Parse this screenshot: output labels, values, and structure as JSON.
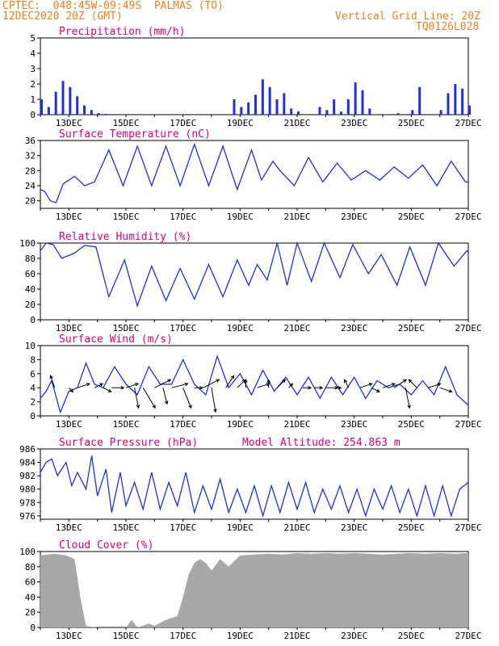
{
  "header": {
    "line1": "CPTEC:  048:45W-09:49S  PALMAS (TO)",
    "line2": "12DEC2020 20Z (GMT)",
    "grid_note": "Vertical Grid Line: 20Z",
    "code": "TQ0126L028"
  },
  "colors": {
    "header": "#f08020",
    "title": "#e0007a",
    "line": "#2030e0",
    "bar": "#2030e0",
    "cloud": "#a8a8a8",
    "arrow": "#000000"
  },
  "chart_data": [
    {
      "type": "bar",
      "title": "Precipitation (mm/h)",
      "x_ticks": [
        "13DEC",
        "15DEC",
        "17DEC",
        "19DEC",
        "21DEC",
        "23DEC",
        "25DEC",
        "27DEC"
      ],
      "yticks": [
        0,
        1,
        2,
        3,
        4,
        5
      ],
      "ylim": [
        0,
        5
      ],
      "x": [
        0.0,
        0.25,
        0.5,
        0.75,
        1.0,
        1.25,
        1.5,
        1.75,
        2.0,
        2.25,
        6.75,
        7.0,
        7.25,
        7.5,
        7.75,
        8.0,
        8.25,
        8.5,
        8.75,
        9.0,
        9.75,
        10.0,
        10.25,
        10.5,
        10.75,
        11.0,
        11.25,
        11.5,
        12.5,
        13.0,
        13.25,
        14.0,
        14.25,
        14.5,
        14.75,
        15.0
      ],
      "values": [
        1.0,
        0.5,
        1.5,
        2.2,
        1.8,
        1.2,
        0.6,
        0.3,
        0.1,
        0.05,
        1.0,
        0.5,
        0.8,
        1.3,
        2.3,
        1.8,
        1.0,
        1.4,
        0.4,
        0.2,
        0.5,
        0.3,
        1.0,
        0.2,
        1.0,
        2.1,
        1.6,
        0.4,
        0.1,
        0.3,
        1.8,
        0.3,
        1.4,
        2.0,
        1.7,
        0.6
      ]
    },
    {
      "type": "line",
      "title": "Surface Temperature (nC)",
      "x_ticks": [
        "13DEC",
        "15DEC",
        "17DEC",
        "19DEC",
        "21DEC",
        "23DEC",
        "25DEC",
        "27DEC"
      ],
      "yticks": [
        20,
        24,
        28,
        32,
        36
      ],
      "ylim": [
        18,
        36
      ],
      "x": [
        0.0,
        0.15,
        0.35,
        0.55,
        0.8,
        1.2,
        1.55,
        1.9,
        2.4,
        2.9,
        3.4,
        3.9,
        4.4,
        4.9,
        5.4,
        5.9,
        6.4,
        6.9,
        7.4,
        7.75,
        8.15,
        8.4,
        8.9,
        9.4,
        9.9,
        10.4,
        10.9,
        11.4,
        11.9,
        12.4,
        12.9,
        13.4,
        13.9,
        14.4,
        14.9,
        15.0
      ],
      "values": [
        23.0,
        22.5,
        20.0,
        19.5,
        24.5,
        26.5,
        24.0,
        25.0,
        33.5,
        24.0,
        34.5,
        24.0,
        34.5,
        24.0,
        35.0,
        24.0,
        34.5,
        23.0,
        33.5,
        25.5,
        30.5,
        28.0,
        24.0,
        31.5,
        25.0,
        30.0,
        25.5,
        28.0,
        25.5,
        29.0,
        26.0,
        29.5,
        24.0,
        30.5,
        25.0,
        25.0
      ]
    },
    {
      "type": "line",
      "title": "Relative Humidity (%)",
      "x_ticks": [
        "13DEC",
        "15DEC",
        "17DEC",
        "19DEC",
        "21DEC",
        "23DEC",
        "25DEC",
        "27DEC"
      ],
      "yticks": [
        0,
        20,
        40,
        60,
        80,
        100
      ],
      "ylim": [
        0,
        100
      ],
      "x": [
        0.0,
        0.2,
        0.45,
        0.75,
        1.2,
        1.55,
        1.95,
        2.4,
        2.95,
        3.4,
        3.9,
        4.4,
        4.9,
        5.4,
        5.9,
        6.4,
        6.9,
        7.3,
        7.6,
        7.95,
        8.3,
        8.65,
        9.0,
        9.5,
        9.95,
        10.5,
        10.95,
        11.5,
        11.95,
        12.5,
        12.95,
        13.5,
        13.95,
        14.5,
        14.95,
        15.0
      ],
      "values": [
        90,
        100,
        98,
        80,
        87,
        97,
        95,
        30,
        78,
        18,
        70,
        25,
        67,
        27,
        72,
        30,
        78,
        45,
        72,
        52,
        100,
        45,
        100,
        50,
        100,
        55,
        98,
        60,
        85,
        45,
        95,
        45,
        100,
        70,
        90,
        88
      ]
    },
    {
      "type": "line",
      "title": "Surface Wind (m/s)",
      "x_ticks": [
        "13DEC",
        "15DEC",
        "17DEC",
        "19DEC",
        "21DEC",
        "23DEC",
        "25DEC",
        "27DEC"
      ],
      "yticks": [
        0,
        2,
        4,
        6,
        8,
        10
      ],
      "ylim": [
        0,
        10
      ],
      "x": [
        0.0,
        0.2,
        0.4,
        0.7,
        1.0,
        1.3,
        1.6,
        1.9,
        2.2,
        2.6,
        3.0,
        3.4,
        3.8,
        4.2,
        4.6,
        5.0,
        5.4,
        5.8,
        6.2,
        6.6,
        7.0,
        7.4,
        7.8,
        8.2,
        8.6,
        9.0,
        9.4,
        9.8,
        10.2,
        10.6,
        11.0,
        11.4,
        11.8,
        12.2,
        12.6,
        13.0,
        13.4,
        13.8,
        14.2,
        14.6,
        15.0
      ],
      "values": [
        2.5,
        3.5,
        5.0,
        0.5,
        3.5,
        4.0,
        7.5,
        4.5,
        4.0,
        7.0,
        4.5,
        3.0,
        7.0,
        4.5,
        4.5,
        8.0,
        4.5,
        3.0,
        8.5,
        4.0,
        6.0,
        3.0,
        6.5,
        3.5,
        5.5,
        3.0,
        5.5,
        2.5,
        5.5,
        3.0,
        5.5,
        2.5,
        5.0,
        4.0,
        4.5,
        3.0,
        5.0,
        3.0,
        7.0,
        3.0,
        1.5
      ],
      "vectors": [
        {
          "x": 0.5,
          "u": -1,
          "v": 3
        },
        {
          "x": 1.0,
          "u": 1,
          "v": -1
        },
        {
          "x": 1.3,
          "u": 3,
          "v": 1
        },
        {
          "x": 1.9,
          "u": 2,
          "v": 1
        },
        {
          "x": 2.2,
          "u": 2,
          "v": -1
        },
        {
          "x": 2.5,
          "u": 3,
          "v": 0
        },
        {
          "x": 3.0,
          "u": 3,
          "v": 1
        },
        {
          "x": 3.3,
          "u": 1,
          "v": -5
        },
        {
          "x": 3.6,
          "u": 3,
          "v": -5
        },
        {
          "x": 4.0,
          "u": 4,
          "v": 2
        },
        {
          "x": 4.3,
          "u": 1,
          "v": -4
        },
        {
          "x": 4.6,
          "u": 4,
          "v": 1
        },
        {
          "x": 5.0,
          "u": 2,
          "v": -5
        },
        {
          "x": 5.4,
          "u": 2,
          "v": 0
        },
        {
          "x": 5.7,
          "u": 4,
          "v": 2
        },
        {
          "x": 6.0,
          "u": 1,
          "v": -6
        },
        {
          "x": 6.5,
          "u": 2,
          "v": 3
        },
        {
          "x": 6.9,
          "u": 2,
          "v": 2
        },
        {
          "x": 7.2,
          "u": 0,
          "v": 2
        },
        {
          "x": 7.6,
          "u": 3,
          "v": 1
        },
        {
          "x": 8.0,
          "u": 0,
          "v": 2
        },
        {
          "x": 8.3,
          "u": 2,
          "v": 2
        },
        {
          "x": 8.7,
          "u": 1,
          "v": 1
        },
        {
          "x": 9.2,
          "u": 2,
          "v": 0
        },
        {
          "x": 9.6,
          "u": 2,
          "v": 0
        },
        {
          "x": 10.0,
          "u": 3,
          "v": 0
        },
        {
          "x": 10.4,
          "u": 1,
          "v": 0
        },
        {
          "x": 10.8,
          "u": -1,
          "v": 2
        },
        {
          "x": 11.2,
          "u": 3,
          "v": 1
        },
        {
          "x": 11.6,
          "u": 2,
          "v": -1
        },
        {
          "x": 12.0,
          "u": 3,
          "v": 1
        },
        {
          "x": 12.4,
          "u": 3,
          "v": 2
        },
        {
          "x": 12.8,
          "u": 1,
          "v": -5
        },
        {
          "x": 13.2,
          "u": -2,
          "v": 2
        },
        {
          "x": 13.6,
          "u": 3,
          "v": 1
        },
        {
          "x": 14.0,
          "u": 3,
          "v": -1
        }
      ]
    },
    {
      "type": "line",
      "title": "Surface Pressure (hPa)",
      "subtitle": "Model Altitude: 254.863 m",
      "x_ticks": [
        "13DEC",
        "15DEC",
        "17DEC",
        "19DEC",
        "21DEC",
        "23DEC",
        "25DEC",
        "27DEC"
      ],
      "yticks": [
        976,
        978,
        980,
        982,
        984,
        986
      ],
      "ylim": [
        975.5,
        986
      ],
      "x": [
        0.0,
        0.2,
        0.4,
        0.6,
        0.9,
        1.1,
        1.3,
        1.6,
        1.8,
        2.0,
        2.3,
        2.5,
        2.8,
        3.0,
        3.3,
        3.6,
        3.9,
        4.2,
        4.5,
        4.8,
        5.1,
        5.4,
        5.7,
        6.0,
        6.3,
        6.6,
        6.9,
        7.2,
        7.5,
        7.8,
        8.1,
        8.4,
        8.7,
        9.0,
        9.3,
        9.6,
        9.9,
        10.2,
        10.5,
        10.8,
        11.1,
        11.4,
        11.7,
        12.0,
        12.3,
        12.6,
        12.9,
        13.2,
        13.5,
        13.8,
        14.1,
        14.4,
        14.7,
        15.0
      ],
      "values": [
        982.5,
        984.0,
        984.5,
        982.0,
        984.0,
        980.5,
        982.5,
        980.0,
        985.0,
        979.0,
        983.0,
        976.5,
        982.5,
        977.5,
        981.0,
        977.0,
        982.5,
        977.0,
        981.0,
        977.5,
        982.5,
        976.5,
        980.5,
        977.0,
        981.5,
        976.5,
        980.0,
        976.5,
        980.5,
        976.0,
        980.5,
        976.5,
        981.0,
        977.0,
        981.0,
        976.5,
        980.0,
        977.0,
        980.5,
        976.5,
        980.0,
        976.0,
        980.0,
        977.0,
        980.5,
        976.5,
        980.0,
        976.0,
        980.5,
        976.0,
        980.5,
        976.0,
        980.0,
        981.0
      ]
    },
    {
      "type": "area",
      "title": "Cloud Cover (%)",
      "x_ticks": [
        "13DEC",
        "15DEC",
        "17DEC",
        "19DEC",
        "21DEC",
        "23DEC",
        "25DEC",
        "27DEC"
      ],
      "yticks": [
        0,
        20,
        40,
        60,
        80,
        100
      ],
      "ylim": [
        0,
        100
      ],
      "x": [
        0.0,
        0.5,
        0.9,
        1.2,
        1.4,
        1.6,
        2.0,
        3.0,
        3.2,
        3.4,
        3.8,
        4.0,
        4.4,
        4.8,
        5.0,
        5.2,
        5.4,
        5.6,
        5.8,
        6.0,
        6.3,
        6.6,
        7.0,
        7.5,
        8.0,
        8.5,
        9.0,
        9.5,
        10.0,
        10.5,
        11.0,
        11.5,
        12.0,
        12.5,
        13.0,
        13.5,
        14.0,
        14.5,
        15.0
      ],
      "values": [
        95,
        97,
        95,
        90,
        40,
        2,
        0,
        0,
        10,
        0,
        5,
        2,
        10,
        15,
        40,
        70,
        85,
        90,
        85,
        75,
        90,
        80,
        95,
        96,
        97,
        96,
        98,
        97,
        98,
        97,
        98,
        97,
        96,
        97,
        98,
        97,
        98,
        97,
        98
      ]
    }
  ]
}
